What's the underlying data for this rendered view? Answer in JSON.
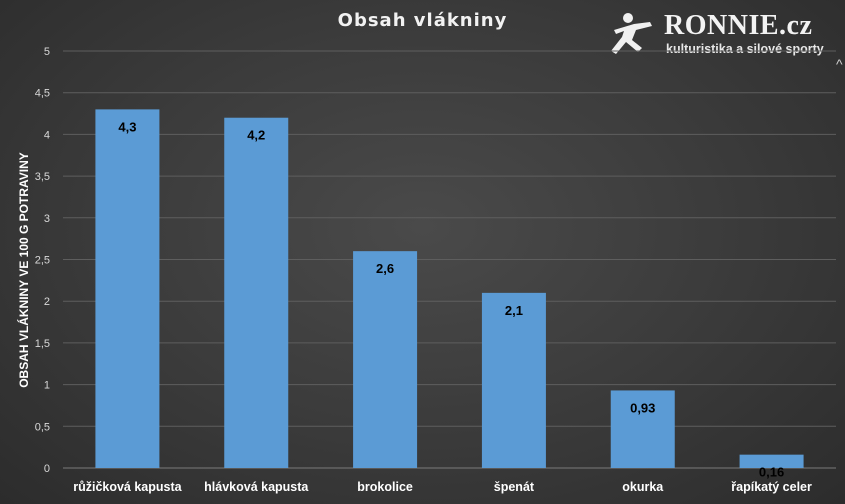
{
  "chart_data": {
    "type": "bar",
    "title": "Obsah vlákniny",
    "xlabel": "",
    "ylabel": "OBSAH VLÁKNINY VE 100 G POTRAVINY",
    "categories": [
      "růžičková kapusta",
      "hlávková kapusta",
      "brokolice",
      "špenát",
      "okurka",
      "řapíkatý celer"
    ],
    "values": [
      4.3,
      4.2,
      2.6,
      2.1,
      0.93,
      0.16
    ],
    "data_labels": [
      "4,3",
      "4,2",
      "2,6",
      "2,1",
      "0,93",
      "0,16"
    ],
    "ylim": [
      0,
      5
    ],
    "yticks": [
      0,
      0.5,
      1,
      1.5,
      2,
      2.5,
      3,
      3.5,
      4,
      4.5,
      5
    ],
    "ytick_labels": [
      "0",
      "0,5",
      "1",
      "1,5",
      "2",
      "2,5",
      "3",
      "3,5",
      "4",
      "4,5",
      "5"
    ],
    "grid": true,
    "legend": "none",
    "bar_color": "#5b9bd5"
  },
  "logo": {
    "brand": "RONNIE.cz",
    "tagline": "kulturistika a silové sporty",
    "icon": "athlete-figure-icon"
  },
  "colors": {
    "background": "#3b3b3b",
    "gridline": "#5e5e5e",
    "text": "#ffffff",
    "data_label": "#000000"
  }
}
